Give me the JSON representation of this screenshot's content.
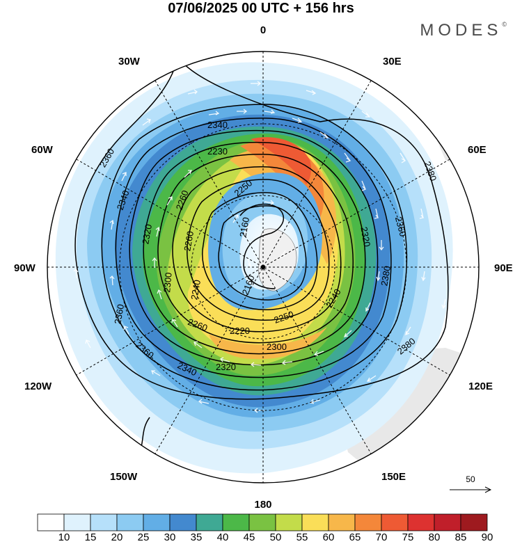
{
  "title": "07/06/2025  00 UTC  + 156 hrs",
  "brand": "MODES",
  "brand_mark": "©",
  "longitude_labels": {
    "top": "0",
    "bottom": "180",
    "left": "90W",
    "right": "90E",
    "nw1": "30W",
    "nw2": "60W",
    "ne1": "30E",
    "ne2": "60E",
    "sw1": "120W",
    "sw2": "150W",
    "se1": "120E",
    "se2": "150E"
  },
  "contour_labels": [
    "2340",
    "2230",
    "2360",
    "2340",
    "2260",
    "2250",
    "2320",
    "2260",
    "2160",
    "2160",
    "2320",
    "2360",
    "2380",
    "2300",
    "2240",
    "2240",
    "2220",
    "2250",
    "2260",
    "2300",
    "2360",
    "2320",
    "2340",
    "2380",
    "2360",
    "2380"
  ],
  "reference_vector": {
    "value": "50"
  },
  "colorbar": {
    "ticks": [
      "10",
      "15",
      "20",
      "25",
      "30",
      "35",
      "40",
      "45",
      "50",
      "55",
      "60",
      "65",
      "70",
      "75",
      "80",
      "85",
      "90"
    ],
    "colors": [
      "#ffffff",
      "#dff2fd",
      "#b6e0fa",
      "#8ccbf2",
      "#62aee6",
      "#4389cf",
      "#3fa994",
      "#4cb848",
      "#7ac242",
      "#c3dc4a",
      "#fade58",
      "#f7b74a",
      "#f4873a",
      "#ee5a34",
      "#dd3230",
      "#c01f2a",
      "#9e1a1f"
    ]
  },
  "colors": {
    "land": "#e8e8e8",
    "contour": "#000000",
    "vector": "#ffffff"
  }
}
